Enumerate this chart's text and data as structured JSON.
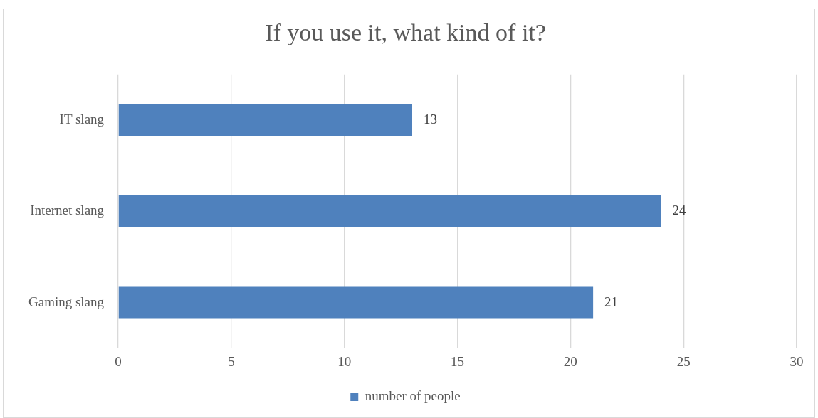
{
  "chart_data": {
    "type": "bar",
    "orientation": "horizontal",
    "title": "If you use it, what kind of it?",
    "categories": [
      "IT slang",
      "Internet slang",
      "Gaming slang"
    ],
    "series": [
      {
        "name": "number of people",
        "color": "#4f81bd",
        "values": [
          13,
          24,
          21
        ]
      }
    ],
    "xlim": [
      0,
      30
    ],
    "xticks": [
      0,
      5,
      10,
      15,
      20,
      25,
      30
    ],
    "grid": "x",
    "legend": "bottom",
    "data_labels": true
  }
}
